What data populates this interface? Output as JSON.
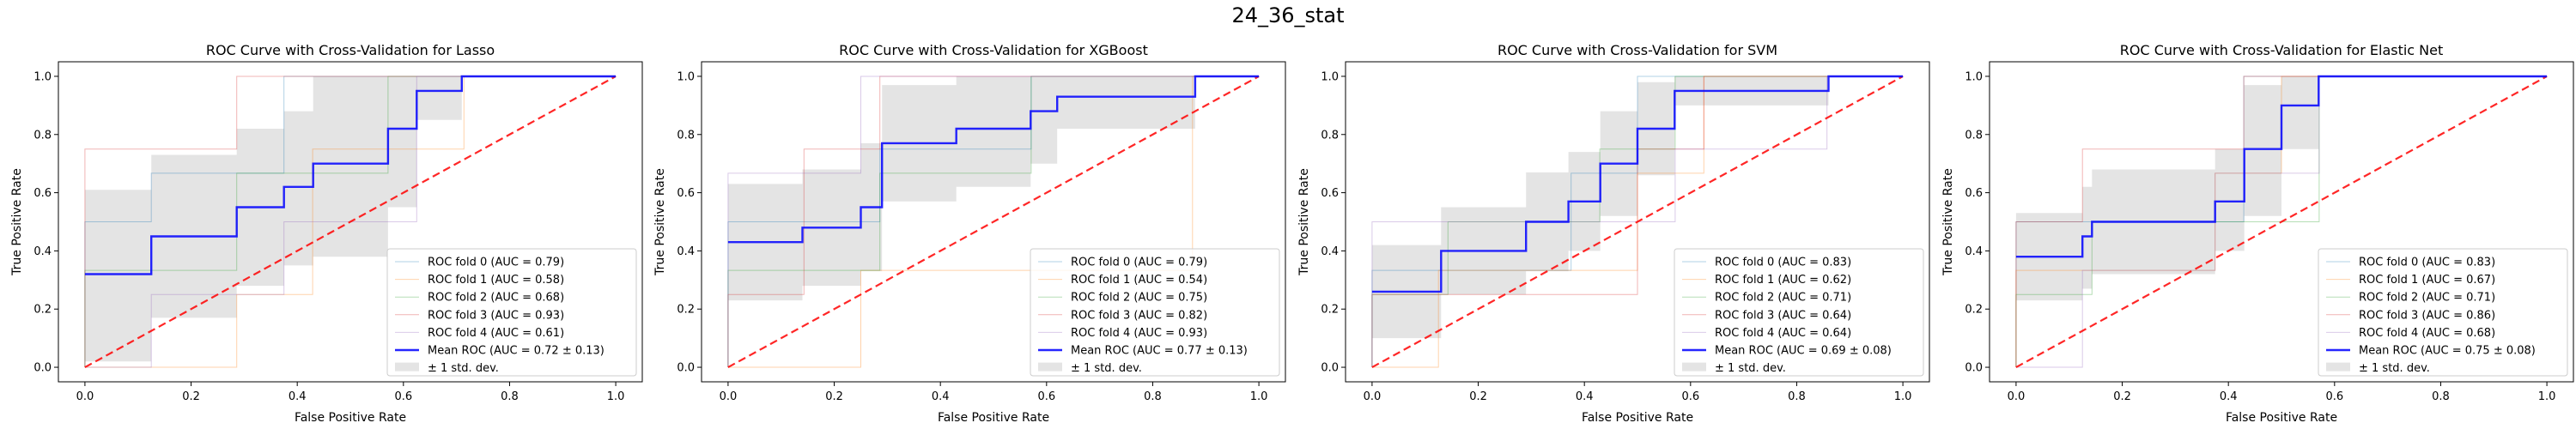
{
  "suptitle": "24_36_stat",
  "colors": {
    "folds": [
      "#1f77b4",
      "#ff7f0e",
      "#2ca02c",
      "#d62728",
      "#9467bd"
    ],
    "mean": "#0000ff",
    "chance": "#ff0000",
    "band": "#bfbfbf"
  },
  "chart_data": [
    {
      "type": "line",
      "title": "ROC Curve with Cross-Validation for Lasso",
      "xlabel": "False Positive Rate",
      "ylabel": "True Positive Rate",
      "xlim": [
        -0.05,
        1.05
      ],
      "ylim": [
        -0.05,
        1.05
      ],
      "xticks": [
        "0.0",
        "0.2",
        "0.4",
        "0.6",
        "0.8",
        "1.0"
      ],
      "yticks": [
        "0.0",
        "0.2",
        "0.4",
        "0.6",
        "0.8",
        "1.0"
      ],
      "legend_position": "lower right",
      "series": [
        {
          "name": "ROC fold 0 (AUC = 0.79)",
          "x": [
            0,
            0,
            0.125,
            0.125,
            0.375,
            0.375,
            0.625,
            0.625,
            1
          ],
          "y": [
            0,
            0.5,
            0.5,
            0.667,
            0.667,
            1,
            1,
            1,
            1
          ]
        },
        {
          "name": "ROC fold 1 (AUC = 0.58)",
          "x": [
            0,
            0.286,
            0.286,
            0.429,
            0.429,
            0.714,
            0.714,
            1
          ],
          "y": [
            0,
            0,
            0.25,
            0.25,
            0.75,
            0.75,
            1,
            1
          ]
        },
        {
          "name": "ROC fold 2 (AUC = 0.68)",
          "x": [
            0,
            0,
            0.286,
            0.286,
            0.571,
            0.571,
            1
          ],
          "y": [
            0,
            0.333,
            0.333,
            0.667,
            0.667,
            1,
            1
          ]
        },
        {
          "name": "ROC fold 3 (AUC = 0.93)",
          "x": [
            0,
            0,
            0.286,
            0.286,
            1
          ],
          "y": [
            0,
            0.75,
            0.75,
            1,
            1
          ]
        },
        {
          "name": "ROC fold 4 (AUC = 0.61)",
          "x": [
            0,
            0.125,
            0.125,
            0.375,
            0.375,
            0.625,
            0.625,
            1
          ],
          "y": [
            0,
            0,
            0.25,
            0.25,
            0.5,
            0.5,
            1,
            1
          ]
        },
        {
          "name": "Mean ROC (AUC = 0.72 ± 0.13)",
          "role": "mean",
          "x": [
            0,
            0.125,
            0.125,
            0.286,
            0.286,
            0.375,
            0.375,
            0.43,
            0.43,
            0.571,
            0.571,
            0.625,
            0.625,
            0.71,
            0.71,
            1
          ],
          "y": [
            0.32,
            0.32,
            0.45,
            0.45,
            0.55,
            0.55,
            0.62,
            0.62,
            0.7,
            0.7,
            0.82,
            0.82,
            0.95,
            0.95,
            1,
            1
          ]
        },
        {
          "name": "± 1 std. dev.",
          "role": "band",
          "x": [
            0,
            0.125,
            0.125,
            0.286,
            0.286,
            0.375,
            0.375,
            0.43,
            0.43,
            0.571,
            0.571,
            0.625,
            0.625,
            0.71,
            0.71,
            1
          ],
          "lower": [
            0.02,
            0.02,
            0.17,
            0.17,
            0.28,
            0.28,
            0.35,
            0.35,
            0.38,
            0.38,
            0.55,
            0.55,
            0.85,
            0.85,
            1,
            1
          ],
          "upper": [
            0.61,
            0.61,
            0.73,
            0.73,
            0.82,
            0.82,
            0.88,
            0.88,
            1,
            1,
            1,
            1,
            1,
            1,
            1,
            1
          ]
        }
      ]
    },
    {
      "type": "line",
      "title": "ROC Curve with Cross-Validation for XGBoost",
      "xlabel": "False Positive Rate",
      "ylabel": "True Positive Rate",
      "xlim": [
        -0.05,
        1.05
      ],
      "ylim": [
        -0.05,
        1.05
      ],
      "xticks": [
        "0.0",
        "0.2",
        "0.4",
        "0.6",
        "0.8",
        "1.0"
      ],
      "yticks": [
        "0.0",
        "0.2",
        "0.4",
        "0.6",
        "0.8",
        "1.0"
      ],
      "legend_position": "lower right",
      "series": [
        {
          "name": "ROC fold 0 (AUC = 0.79)",
          "x": [
            0,
            0,
            0.286,
            0.286,
            0.571,
            0.571,
            1
          ],
          "y": [
            0,
            0.5,
            0.5,
            0.75,
            0.75,
            1,
            1
          ]
        },
        {
          "name": "ROC fold 1 (AUC = 0.54)",
          "x": [
            0,
            0.25,
            0.25,
            0.875,
            0.875,
            1
          ],
          "y": [
            0,
            0,
            0.333,
            0.333,
            1,
            1
          ]
        },
        {
          "name": "ROC fold 2 (AUC = 0.75)",
          "x": [
            0,
            0,
            0.286,
            0.286,
            0.571,
            0.571,
            1
          ],
          "y": [
            0,
            0.333,
            0.333,
            0.667,
            0.667,
            1,
            1
          ]
        },
        {
          "name": "ROC fold 3 (AUC = 0.82)",
          "x": [
            0,
            0,
            0.143,
            0.143,
            0.286,
            0.286,
            1
          ],
          "y": [
            0,
            0.25,
            0.25,
            0.75,
            0.75,
            1,
            1
          ]
        },
        {
          "name": "ROC fold 4 (AUC = 0.93)",
          "x": [
            0,
            0,
            0.25,
            0.25,
            1
          ],
          "y": [
            0,
            0.667,
            0.667,
            1,
            1
          ]
        },
        {
          "name": "Mean ROC (AUC = 0.77 ± 0.13)",
          "role": "mean",
          "x": [
            0,
            0.14,
            0.14,
            0.25,
            0.25,
            0.29,
            0.29,
            0.43,
            0.43,
            0.57,
            0.57,
            0.62,
            0.62,
            0.88,
            0.88,
            1
          ],
          "y": [
            0.43,
            0.43,
            0.48,
            0.48,
            0.55,
            0.55,
            0.77,
            0.77,
            0.82,
            0.82,
            0.88,
            0.88,
            0.93,
            0.93,
            1,
            1
          ]
        },
        {
          "name": "± 1 std. dev.",
          "role": "band",
          "x": [
            0,
            0.14,
            0.14,
            0.25,
            0.25,
            0.29,
            0.29,
            0.43,
            0.43,
            0.57,
            0.57,
            0.62,
            0.62,
            0.88,
            0.88,
            1
          ],
          "lower": [
            0.23,
            0.23,
            0.28,
            0.28,
            0.33,
            0.33,
            0.57,
            0.57,
            0.62,
            0.62,
            0.7,
            0.7,
            0.82,
            0.82,
            1,
            1
          ],
          "upper": [
            0.63,
            0.63,
            0.68,
            0.68,
            0.77,
            0.77,
            0.97,
            0.97,
            1,
            1,
            1,
            1,
            1,
            1,
            1,
            1
          ]
        }
      ]
    },
    {
      "type": "line",
      "title": "ROC Curve with Cross-Validation for SVM",
      "xlabel": "False Positive Rate",
      "ylabel": "True Positive Rate",
      "xlim": [
        -0.05,
        1.05
      ],
      "ylim": [
        -0.05,
        1.05
      ],
      "xticks": [
        "0.0",
        "0.2",
        "0.4",
        "0.6",
        "0.8",
        "1.0"
      ],
      "yticks": [
        "0.0",
        "0.2",
        "0.4",
        "0.6",
        "0.8",
        "1.0"
      ],
      "legend_position": "lower right",
      "series": [
        {
          "name": "ROC fold 0 (AUC = 0.83)",
          "x": [
            0,
            0,
            0.375,
            0.375,
            0.5,
            0.5,
            1
          ],
          "y": [
            0,
            0.333,
            0.333,
            0.667,
            0.667,
            1,
            1
          ]
        },
        {
          "name": "ROC fold 1 (AUC = 0.62)",
          "x": [
            0,
            0.125,
            0.125,
            0.5,
            0.5,
            0.625,
            0.625,
            1
          ],
          "y": [
            0,
            0,
            0.333,
            0.333,
            0.667,
            0.667,
            1,
            1
          ]
        },
        {
          "name": "ROC fold 2 (AUC = 0.71)",
          "x": [
            0,
            0,
            0.143,
            0.143,
            0.429,
            0.429,
            0.571,
            0.571,
            1
          ],
          "y": [
            0,
            0.25,
            0.25,
            0.5,
            0.5,
            0.75,
            0.75,
            1,
            1
          ]
        },
        {
          "name": "ROC fold 3 (AUC = 0.64)",
          "x": [
            0,
            0,
            0.125,
            0.125,
            0.5,
            0.5,
            0.625,
            0.625,
            1
          ],
          "y": [
            0,
            0.25,
            0.25,
            0.25,
            0.25,
            0.75,
            0.75,
            1,
            1
          ]
        },
        {
          "name": "ROC fold 4 (AUC = 0.64)",
          "x": [
            0,
            0,
            0.571,
            0.571,
            0.857,
            0.857,
            1
          ],
          "y": [
            0,
            0.5,
            0.5,
            0.75,
            0.75,
            1,
            1
          ]
        },
        {
          "name": "Mean ROC (AUC = 0.69 ± 0.08)",
          "role": "mean",
          "x": [
            0,
            0.13,
            0.13,
            0.29,
            0.29,
            0.37,
            0.37,
            0.43,
            0.43,
            0.5,
            0.5,
            0.57,
            0.57,
            0.86,
            0.86,
            1
          ],
          "y": [
            0.26,
            0.26,
            0.4,
            0.4,
            0.5,
            0.5,
            0.57,
            0.57,
            0.7,
            0.7,
            0.82,
            0.82,
            0.95,
            0.95,
            1,
            1
          ]
        },
        {
          "name": "± 1 std. dev.",
          "role": "band",
          "x": [
            0,
            0.13,
            0.13,
            0.29,
            0.29,
            0.37,
            0.37,
            0.43,
            0.43,
            0.5,
            0.5,
            0.57,
            0.57,
            0.86,
            0.86,
            1
          ],
          "lower": [
            0.1,
            0.1,
            0.25,
            0.25,
            0.33,
            0.33,
            0.4,
            0.4,
            0.52,
            0.52,
            0.66,
            0.66,
            0.9,
            0.9,
            1,
            1
          ],
          "upper": [
            0.42,
            0.42,
            0.55,
            0.55,
            0.67,
            0.67,
            0.74,
            0.74,
            0.88,
            0.88,
            0.98,
            0.98,
            1,
            1,
            1,
            1
          ]
        }
      ]
    },
    {
      "type": "line",
      "title": "ROC Curve with Cross-Validation for Elastic Net",
      "xlabel": "False Positive Rate",
      "ylabel": "True Positive Rate",
      "xlim": [
        -0.05,
        1.05
      ],
      "ylim": [
        -0.05,
        1.05
      ],
      "xticks": [
        "0.0",
        "0.2",
        "0.4",
        "0.6",
        "0.8",
        "1.0"
      ],
      "yticks": [
        "0.0",
        "0.2",
        "0.4",
        "0.6",
        "0.8",
        "1.0"
      ],
      "legend_position": "lower right",
      "series": [
        {
          "name": "ROC fold 0 (AUC = 0.83)",
          "x": [
            0,
            0,
            0.429,
            0.429,
            1
          ],
          "y": [
            0,
            0.5,
            0.5,
            1,
            1
          ]
        },
        {
          "name": "ROC fold 1 (AUC = 0.67)",
          "x": [
            0,
            0,
            0.375,
            0.375,
            0.5,
            0.5,
            1
          ],
          "y": [
            0,
            0.333,
            0.333,
            0.667,
            0.667,
            1,
            1
          ]
        },
        {
          "name": "ROC fold 2 (AUC = 0.71)",
          "x": [
            0,
            0,
            0.143,
            0.143,
            0.571,
            0.571,
            1
          ],
          "y": [
            0,
            0.25,
            0.25,
            0.5,
            0.5,
            1,
            1
          ]
        },
        {
          "name": "ROC fold 3 (AUC = 0.86)",
          "x": [
            0,
            0,
            0.125,
            0.125,
            0.429,
            0.429,
            1
          ],
          "y": [
            0,
            0.5,
            0.5,
            0.75,
            0.75,
            1,
            1
          ]
        },
        {
          "name": "ROC fold 4 (AUC = 0.68)",
          "x": [
            0,
            0.125,
            0.125,
            0.375,
            0.375,
            0.571,
            0.571,
            1
          ],
          "y": [
            0,
            0,
            0.333,
            0.333,
            0.667,
            0.667,
            1,
            1
          ]
        },
        {
          "name": "Mean ROC (AUC = 0.75 ± 0.08)",
          "role": "mean",
          "x": [
            0,
            0.125,
            0.125,
            0.143,
            0.143,
            0.375,
            0.375,
            0.43,
            0.43,
            0.5,
            0.5,
            0.57,
            0.57,
            1
          ],
          "y": [
            0.38,
            0.38,
            0.45,
            0.45,
            0.5,
            0.5,
            0.57,
            0.57,
            0.75,
            0.75,
            0.9,
            0.9,
            1,
            1
          ]
        },
        {
          "name": "± 1 std. dev.",
          "role": "band",
          "x": [
            0,
            0.125,
            0.125,
            0.143,
            0.143,
            0.375,
            0.375,
            0.43,
            0.43,
            0.5,
            0.5,
            0.57,
            0.57,
            1
          ],
          "lower": [
            0.23,
            0.23,
            0.27,
            0.27,
            0.32,
            0.32,
            0.4,
            0.4,
            0.52,
            0.52,
            0.75,
            0.75,
            1,
            1
          ],
          "upper": [
            0.53,
            0.53,
            0.62,
            0.62,
            0.68,
            0.68,
            0.75,
            0.75,
            0.97,
            0.97,
            1,
            1,
            1,
            1
          ]
        }
      ]
    }
  ]
}
